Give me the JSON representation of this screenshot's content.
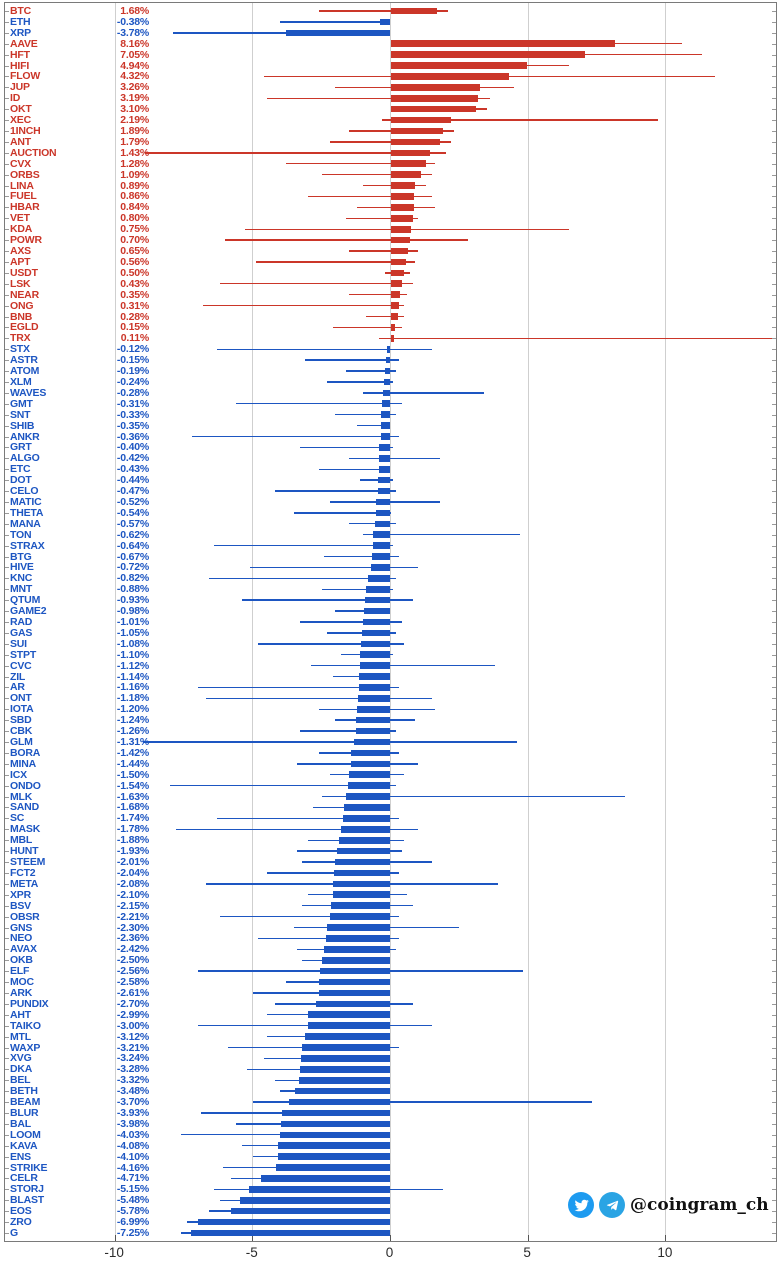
{
  "watermark": {
    "handle": "@coingram_ch"
  },
  "chart_data": {
    "type": "bar",
    "orientation": "horizontal",
    "title": "",
    "xlabel": "",
    "ylabel": "",
    "value_suffix": "%",
    "xlim": [
      -14,
      14
    ],
    "x_ticks": [
      -10,
      -5,
      0,
      5,
      10
    ],
    "grid": true,
    "colors": {
      "positive": "#cb3629",
      "negative": "#1d56c2"
    },
    "columns": [
      "ticker",
      "change_pct",
      "range_low_pct",
      "range_high_pct"
    ],
    "rows": [
      [
        "BTC",
        1.68,
        -2.6,
        2.1
      ],
      [
        "ETH",
        -0.38,
        -4.0,
        -0.1
      ],
      [
        "XRP",
        -3.78,
        -7.9,
        -1.6
      ],
      [
        "AAVE",
        8.16,
        3.9,
        10.6
      ],
      [
        "HFT",
        7.05,
        2.5,
        11.3
      ],
      [
        "HIFI",
        4.94,
        2.0,
        6.5
      ],
      [
        "FLOW",
        4.32,
        -4.6,
        11.8
      ],
      [
        "JUP",
        3.26,
        -2.0,
        4.5
      ],
      [
        "ID",
        3.19,
        -4.5,
        3.6
      ],
      [
        "OKT",
        3.1,
        0.5,
        3.5
      ],
      [
        "XEC",
        2.19,
        -0.3,
        9.7
      ],
      [
        "1INCH",
        1.89,
        -1.5,
        2.3
      ],
      [
        "ANT",
        1.79,
        -2.2,
        2.2
      ],
      [
        "AUCTION",
        1.43,
        -8.9,
        2.0
      ],
      [
        "CVX",
        1.28,
        -3.8,
        1.6
      ],
      [
        "ORBS",
        1.09,
        -2.5,
        1.5
      ],
      [
        "LINA",
        0.89,
        -1.0,
        1.3
      ],
      [
        "FUEL",
        0.86,
        -3.0,
        1.5
      ],
      [
        "HBAR",
        0.84,
        -1.2,
        1.6
      ],
      [
        "VET",
        0.8,
        -1.6,
        1.0
      ],
      [
        "KDA",
        0.75,
        -5.3,
        6.5
      ],
      [
        "POWR",
        0.7,
        -6.0,
        2.8
      ],
      [
        "AXS",
        0.65,
        -1.5,
        1.0
      ],
      [
        "APT",
        0.56,
        -4.9,
        0.9
      ],
      [
        "USDT",
        0.5,
        -0.2,
        0.7
      ],
      [
        "LSK",
        0.43,
        -6.2,
        0.8
      ],
      [
        "NEAR",
        0.35,
        -1.5,
        0.6
      ],
      [
        "ONG",
        0.31,
        -6.8,
        0.5
      ],
      [
        "BNB",
        0.28,
        -0.9,
        0.5
      ],
      [
        "EGLD",
        0.15,
        -2.1,
        0.4
      ],
      [
        "TRX",
        0.11,
        -0.4,
        13.9
      ],
      [
        "STX",
        -0.12,
        -6.3,
        1.5
      ],
      [
        "ASTR",
        -0.15,
        -3.1,
        0.3
      ],
      [
        "ATOM",
        -0.19,
        -1.6,
        0.2
      ],
      [
        "XLM",
        -0.24,
        -2.3,
        0.1
      ],
      [
        "WAVES",
        -0.28,
        -1.0,
        3.4
      ],
      [
        "GMT",
        -0.31,
        -5.6,
        0.4
      ],
      [
        "SNT",
        -0.33,
        -2.0,
        0.2
      ],
      [
        "SHIB",
        -0.35,
        -1.2,
        0.0
      ],
      [
        "ANKR",
        -0.36,
        -7.2,
        0.3
      ],
      [
        "GRT",
        -0.4,
        -3.3,
        0.1
      ],
      [
        "ALGO",
        -0.42,
        -1.5,
        1.8
      ],
      [
        "ETC",
        -0.43,
        -2.6,
        0.0
      ],
      [
        "DOT",
        -0.44,
        -1.1,
        0.1
      ],
      [
        "CELO",
        -0.47,
        -4.2,
        0.2
      ],
      [
        "MATIC",
        -0.52,
        -2.2,
        1.8
      ],
      [
        "THETA",
        -0.54,
        -3.5,
        0.0
      ],
      [
        "MANA",
        -0.57,
        -1.5,
        0.2
      ],
      [
        "TON",
        -0.62,
        -1.0,
        4.7
      ],
      [
        "STRAX",
        -0.64,
        -6.4,
        0.1
      ],
      [
        "BTG",
        -0.67,
        -2.4,
        0.3
      ],
      [
        "HIVE",
        -0.72,
        -5.1,
        1.0
      ],
      [
        "KNC",
        -0.82,
        -6.6,
        0.2
      ],
      [
        "MNT",
        -0.88,
        -2.5,
        0.1
      ],
      [
        "QTUM",
        -0.93,
        -5.4,
        0.8
      ],
      [
        "GAME2",
        -0.98,
        -2.0,
        0.0
      ],
      [
        "RAD",
        -1.01,
        -3.3,
        0.4
      ],
      [
        "GAS",
        -1.05,
        -2.3,
        0.2
      ],
      [
        "SUI",
        -1.08,
        -4.8,
        0.5
      ],
      [
        "STPT",
        -1.1,
        -1.8,
        0.1
      ],
      [
        "CVC",
        -1.12,
        -2.9,
        3.8
      ],
      [
        "ZIL",
        -1.14,
        -2.1,
        0.0
      ],
      [
        "AR",
        -1.16,
        -7.0,
        0.3
      ],
      [
        "ONT",
        -1.18,
        -6.7,
        1.5
      ],
      [
        "IOTA",
        -1.2,
        -2.6,
        1.6
      ],
      [
        "SBD",
        -1.24,
        -2.0,
        0.9
      ],
      [
        "CBK",
        -1.26,
        -3.3,
        0.2
      ],
      [
        "GLM",
        -1.31,
        -9.0,
        4.6
      ],
      [
        "BORA",
        -1.42,
        -2.6,
        0.3
      ],
      [
        "MINA",
        -1.44,
        -3.4,
        1.0
      ],
      [
        "ICX",
        -1.5,
        -2.2,
        0.5
      ],
      [
        "ONDO",
        -1.54,
        -8.0,
        0.2
      ],
      [
        "MLK",
        -1.63,
        -2.5,
        8.5
      ],
      [
        "SAND",
        -1.68,
        -2.8,
        0.0
      ],
      [
        "SC",
        -1.74,
        -6.3,
        0.3
      ],
      [
        "MASK",
        -1.78,
        -7.8,
        1.0
      ],
      [
        "MBL",
        -1.88,
        -3.0,
        0.5
      ],
      [
        "HUNT",
        -1.93,
        -3.4,
        0.4
      ],
      [
        "STEEM",
        -2.01,
        -3.2,
        1.5
      ],
      [
        "FCT2",
        -2.04,
        -4.5,
        0.3
      ],
      [
        "META",
        -2.08,
        -6.7,
        3.9
      ],
      [
        "XPR",
        -2.1,
        -3.0,
        0.6
      ],
      [
        "BSV",
        -2.15,
        -3.2,
        0.8
      ],
      [
        "OBSR",
        -2.21,
        -6.2,
        0.3
      ],
      [
        "GNS",
        -2.3,
        -3.5,
        2.5
      ],
      [
        "NEO",
        -2.36,
        -4.8,
        0.3
      ],
      [
        "AVAX",
        -2.42,
        -3.4,
        0.2
      ],
      [
        "OKB",
        -2.5,
        -3.2,
        -0.5
      ],
      [
        "ELF",
        -2.56,
        -7.0,
        4.8
      ],
      [
        "MOC",
        -2.58,
        -3.8,
        -0.3
      ],
      [
        "ARK",
        -2.61,
        -5.0,
        0.0
      ],
      [
        "PUNDIX",
        -2.7,
        -4.2,
        0.8
      ],
      [
        "AHT",
        -2.99,
        -4.5,
        -0.5
      ],
      [
        "TAIKO",
        -3.0,
        -7.0,
        1.5
      ],
      [
        "MTL",
        -3.12,
        -4.5,
        -0.8
      ],
      [
        "WAXP",
        -3.21,
        -5.9,
        0.3
      ],
      [
        "XVG",
        -3.24,
        -4.6,
        -0.9
      ],
      [
        "DKA",
        -3.28,
        -5.2,
        -0.4
      ],
      [
        "BEL",
        -3.32,
        -4.2,
        -1.0
      ],
      [
        "BETH",
        -3.48,
        -4.0,
        -2.8
      ],
      [
        "BEAM",
        -3.7,
        -5.0,
        7.3
      ],
      [
        "BLUR",
        -3.93,
        -6.9,
        -1.2
      ],
      [
        "BAL",
        -3.98,
        -5.6,
        -1.5
      ],
      [
        "LOOM",
        -4.03,
        -7.6,
        -0.6
      ],
      [
        "KAVA",
        -4.08,
        -5.4,
        -2.0
      ],
      [
        "ENS",
        -4.1,
        -5.0,
        -2.5
      ],
      [
        "STRIKE",
        -4.16,
        -6.1,
        -3.0
      ],
      [
        "CELR",
        -4.71,
        -5.8,
        -3.5
      ],
      [
        "STORJ",
        -5.15,
        -6.4,
        1.9
      ],
      [
        "BLAST",
        -5.48,
        -6.2,
        -3.9
      ],
      [
        "EOS",
        -5.78,
        -6.6,
        -2.1
      ],
      [
        "ZRO",
        -6.99,
        -7.4,
        -3.4
      ],
      [
        "G",
        -7.25,
        -7.6,
        -6.9
      ]
    ]
  }
}
